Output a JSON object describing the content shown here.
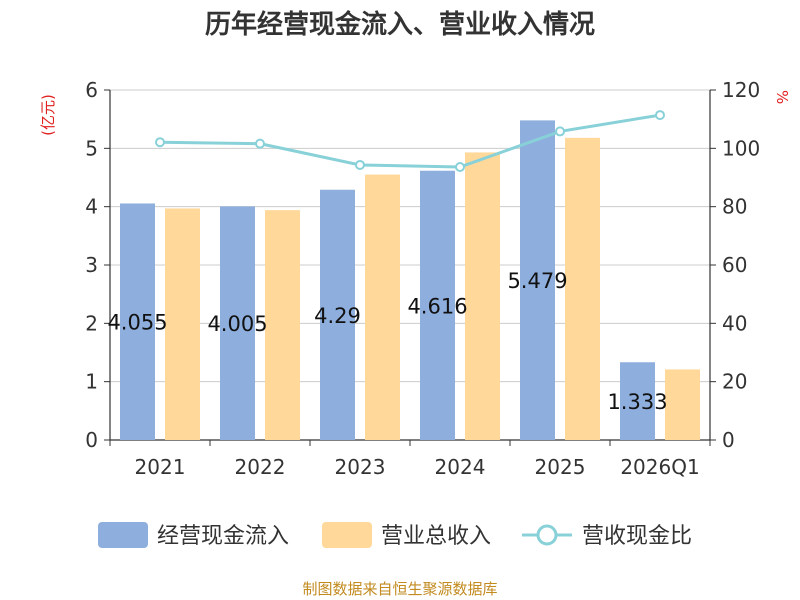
{
  "chart_data": {
    "type": "bar",
    "title": "历年经营现金流入、营业收入情况",
    "categories": [
      "2021",
      "2022",
      "2023",
      "2024",
      "2025",
      "2026Q1"
    ],
    "series": [
      {
        "name": "经营现金流入",
        "type": "bar",
        "axis": "left",
        "color": "#8eaedd",
        "values": [
          4.055,
          4.005,
          4.29,
          4.616,
          5.479,
          1.333
        ]
      },
      {
        "name": "营业总收入",
        "type": "bar",
        "axis": "left",
        "color": "#ffd89a",
        "values": [
          3.97,
          3.94,
          4.55,
          4.93,
          5.18,
          1.21
        ]
      },
      {
        "name": "营收现金比",
        "type": "line",
        "axis": "right",
        "color": "#88d1d8",
        "values": [
          102.1,
          101.6,
          94.3,
          93.6,
          105.8,
          111.4
        ]
      }
    ],
    "data_labels": [
      "4.055",
      "4.005",
      "4.29",
      "4.616",
      "5.479",
      "1.333"
    ],
    "left_axis": {
      "unit": "(亿元)",
      "ylim": [
        0,
        6
      ],
      "ticks": [
        "0",
        "1",
        "2",
        "3",
        "4",
        "5",
        "6"
      ]
    },
    "right_axis": {
      "unit": "%",
      "ylim": [
        0,
        120
      ],
      "ticks": [
        "0",
        "20",
        "40",
        "60",
        "80",
        "100",
        "120"
      ]
    },
    "grid": true,
    "legend_position": "bottom",
    "source": "制图数据来自恒生聚源数据库"
  }
}
